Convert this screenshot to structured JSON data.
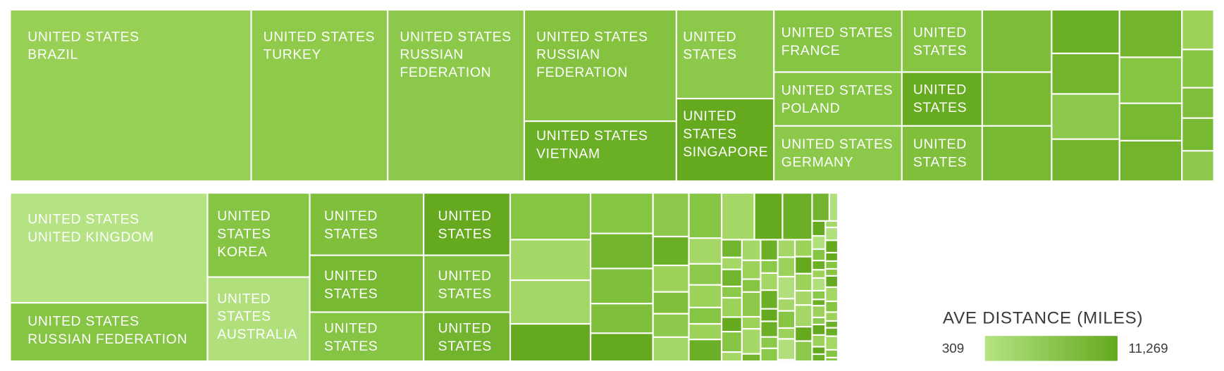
{
  "chart_data": {
    "type": "treemap",
    "tiles": [
      {
        "lines": [
          "UNITED STATES",
          "BRAZIL"
        ],
        "color": "#98cf55"
      },
      {
        "lines": [
          "UNITED STATES",
          "TURKEY"
        ],
        "color": "#8fca4a"
      },
      {
        "lines": [
          "UNITED STATES",
          "RUSSIAN",
          "FEDERATION"
        ],
        "color": "#8cc94a"
      },
      {
        "lines": [
          "UNITED STATES",
          "RUSSIAN",
          "FEDERATION"
        ],
        "color": "#84c23f"
      },
      {
        "lines": [
          "UNITED STATES",
          "VIETNAM"
        ],
        "color": "#6aaf25"
      },
      {
        "lines": [
          "UNITED",
          "STATES"
        ],
        "color": "#8cc94a"
      },
      {
        "lines": [
          "UNITED",
          "STATES",
          "SINGAPORE"
        ],
        "color": "#64a91e"
      },
      {
        "lines": [
          "UNITED STATES",
          "FRANCE"
        ],
        "color": "#86c443"
      },
      {
        "lines": [
          "UNITED STATES",
          "POLAND"
        ],
        "color": "#86c443"
      },
      {
        "lines": [
          "UNITED STATES",
          "GERMANY"
        ],
        "color": "#8cc94a"
      },
      {
        "lines": [
          "UNITED",
          "STATES"
        ],
        "color": "#86c443"
      },
      {
        "lines": [
          "UNITED",
          "STATES"
        ],
        "color": "#66ab20"
      },
      {
        "lines": [
          "UNITED",
          "STATES"
        ],
        "color": "#7fbf3c"
      },
      {
        "lines": [
          "UNITED STATES",
          "UNITED KINGDOM"
        ],
        "color": "#b5e283"
      },
      {
        "lines": [
          "UNITED STATES",
          "RUSSIAN FEDERATION"
        ],
        "color": "#86c443"
      },
      {
        "lines": [
          "UNITED",
          "STATES",
          "KOREA"
        ],
        "color": "#86c443"
      },
      {
        "lines": [
          "UNITED",
          "STATES",
          "AUSTRALIA"
        ],
        "color": "#b0df7c"
      },
      {
        "lines": [
          "UNITED",
          "STATES"
        ],
        "color": "#7fbf3c"
      },
      {
        "lines": [
          "UNITED",
          "STATES"
        ],
        "color": "#78b934"
      },
      {
        "lines": [
          "UNITED",
          "STATES"
        ],
        "color": "#86c443"
      },
      {
        "lines": [
          "UNITED",
          "STATES"
        ],
        "color": "#64a91e"
      },
      {
        "lines": [
          "UNITED",
          "STATES"
        ],
        "color": "#7fbf3c"
      },
      {
        "lines": [
          "UNITED",
          "STATES"
        ],
        "color": "#72b42e"
      }
    ],
    "legend": {
      "title": "AVE DISTANCE (MILES)",
      "min": 309,
      "max": {
        "value": 11269,
        "label": "11,269"
      },
      "colors": [
        "#b5e283",
        "#64a91e"
      ]
    }
  }
}
